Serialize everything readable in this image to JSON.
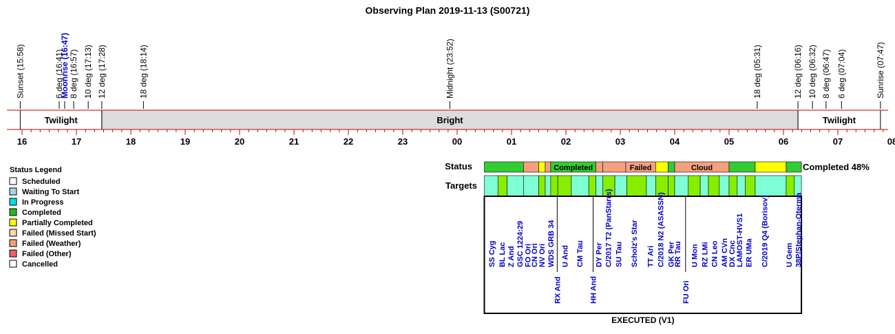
{
  "chart_data": {
    "type": "timeline",
    "title": "Observing Plan 2019-11-13 (S00721)",
    "time_axis": {
      "start_hour": 15.83,
      "end_hour": 32.0,
      "tick_labels": [
        "16",
        "17",
        "18",
        "19",
        "20",
        "21",
        "22",
        "23",
        "00",
        "01",
        "02",
        "03",
        "04",
        "05",
        "06",
        "07",
        "08"
      ]
    },
    "event_markers": [
      {
        "label": "Sunset (15:58)",
        "hour": 15.967,
        "color": "#000000"
      },
      {
        "label": "6 deg (16:41)",
        "hour": 16.683,
        "color": "#000000"
      },
      {
        "label": "Moonrise (16:47)",
        "hour": 16.783,
        "color": "#0000cc"
      },
      {
        "label": "8 deg (16:57)",
        "hour": 16.95,
        "color": "#000000"
      },
      {
        "label": "10 deg (17:13)",
        "hour": 17.217,
        "color": "#000000"
      },
      {
        "label": "12 deg (17:28)",
        "hour": 17.467,
        "color": "#000000"
      },
      {
        "label": "18 deg (18:14)",
        "hour": 18.233,
        "color": "#000000"
      },
      {
        "label": "Midnight (23:52)",
        "hour": 23.867,
        "color": "#000000"
      },
      {
        "label": "18 deg (05:31)",
        "hour": 29.517,
        "color": "#000000"
      },
      {
        "label": "12 deg (06:16)",
        "hour": 30.267,
        "color": "#000000"
      },
      {
        "label": "10 deg (06:32)",
        "hour": 30.533,
        "color": "#000000"
      },
      {
        "label": "8 deg (06:47)",
        "hour": 30.783,
        "color": "#000000"
      },
      {
        "label": "6 deg (07:04)",
        "hour": 31.067,
        "color": "#000000"
      },
      {
        "label": "Sunrise (07:47)",
        "hour": 31.783,
        "color": "#000000"
      }
    ],
    "sky_bands": [
      {
        "label": "Twilight",
        "start": 15.967,
        "end": 17.467,
        "fill": "#ffffff"
      },
      {
        "label": "Bright",
        "start": 17.467,
        "end": 30.267,
        "fill": "#dcdcdc"
      },
      {
        "label": "Twilight",
        "start": 30.267,
        "end": 31.783,
        "fill": "#ffffff"
      }
    ],
    "status_row": {
      "label": "Status",
      "summary": "Completed 48%",
      "segments": [
        {
          "start": 0.5,
          "end": 1.22,
          "status": "Completed",
          "label": ""
        },
        {
          "start": 1.22,
          "end": 1.5,
          "status": "Failed (Weather)",
          "label": ""
        },
        {
          "start": 1.5,
          "end": 1.62,
          "status": "Partially Completed",
          "label": ""
        },
        {
          "start": 1.62,
          "end": 1.72,
          "status": "Failed (Weather)",
          "label": ""
        },
        {
          "start": 1.72,
          "end": 2.55,
          "status": "Completed",
          "label": "Completed"
        },
        {
          "start": 2.55,
          "end": 2.68,
          "status": "Failed (Weather)",
          "label": ""
        },
        {
          "start": 2.68,
          "end": 3.1,
          "status": "Failed (Weather)",
          "label": ""
        },
        {
          "start": 3.1,
          "end": 3.65,
          "status": "Failed (Weather)",
          "label": "Failed"
        },
        {
          "start": 3.65,
          "end": 3.88,
          "status": "Partially Completed",
          "label": ""
        },
        {
          "start": 3.88,
          "end": 4.0,
          "status": "Completed",
          "label": ""
        },
        {
          "start": 4.0,
          "end": 5.0,
          "status": "Failed (Weather)",
          "label": "Cloud"
        },
        {
          "start": 5.0,
          "end": 5.48,
          "status": "Completed",
          "label": ""
        },
        {
          "start": 5.48,
          "end": 6.05,
          "status": "Partially Completed",
          "label": ""
        },
        {
          "start": 6.05,
          "end": 6.33,
          "status": "Completed",
          "label": ""
        }
      ]
    },
    "targets_row": {
      "label": "Targets",
      "footer": "EXECUTED (V1)",
      "blocks": [
        {
          "start": 0.5,
          "end": 0.75,
          "status": "Waiting To Start"
        },
        {
          "start": 0.75,
          "end": 0.92,
          "status": "Completed"
        },
        {
          "start": 0.92,
          "end": 1.22,
          "status": "Waiting To Start"
        },
        {
          "start": 1.22,
          "end": 1.5,
          "status": "Waiting To Start"
        },
        {
          "start": 1.5,
          "end": 1.62,
          "status": "Completed"
        },
        {
          "start": 1.62,
          "end": 1.72,
          "status": "Waiting To Start"
        },
        {
          "start": 1.72,
          "end": 1.85,
          "status": "Completed"
        },
        {
          "start": 1.85,
          "end": 2.1,
          "status": "Completed"
        },
        {
          "start": 2.1,
          "end": 2.42,
          "status": "Waiting To Start"
        },
        {
          "start": 2.42,
          "end": 2.55,
          "status": "Completed"
        },
        {
          "start": 2.55,
          "end": 2.68,
          "status": "Waiting To Start"
        },
        {
          "start": 2.68,
          "end": 2.9,
          "status": "Completed"
        },
        {
          "start": 2.9,
          "end": 3.12,
          "status": "Waiting To Start"
        },
        {
          "start": 3.12,
          "end": 3.48,
          "status": "Completed"
        },
        {
          "start": 3.48,
          "end": 3.65,
          "status": "Waiting To Start"
        },
        {
          "start": 3.65,
          "end": 3.88,
          "status": "Completed"
        },
        {
          "start": 3.88,
          "end": 4.0,
          "status": "Completed"
        },
        {
          "start": 4.0,
          "end": 4.25,
          "status": "Waiting To Start"
        },
        {
          "start": 4.25,
          "end": 4.47,
          "status": "Completed"
        },
        {
          "start": 4.47,
          "end": 4.62,
          "status": "Waiting To Start"
        },
        {
          "start": 4.62,
          "end": 4.82,
          "status": "Completed"
        },
        {
          "start": 4.82,
          "end": 5.0,
          "status": "Waiting To Start"
        },
        {
          "start": 5.0,
          "end": 5.15,
          "status": "Completed"
        },
        {
          "start": 5.15,
          "end": 5.3,
          "status": "Waiting To Start"
        },
        {
          "start": 5.3,
          "end": 5.48,
          "status": "Completed"
        },
        {
          "start": 5.48,
          "end": 6.05,
          "status": "Waiting To Start"
        },
        {
          "start": 6.05,
          "end": 6.2,
          "status": "Completed"
        },
        {
          "start": 6.2,
          "end": 6.33,
          "status": "Waiting To Start"
        }
      ],
      "names": [
        {
          "name": "SS Cyg",
          "hour": 0.63,
          "drop": false
        },
        {
          "name": "BL Lac",
          "hour": 0.82,
          "drop": false
        },
        {
          "name": "Z And",
          "hour": 0.99,
          "drop": false
        },
        {
          "name": "GSC 1224:29",
          "hour": 1.15,
          "drop": false
        },
        {
          "name": "FO Ori",
          "hour": 1.3,
          "drop": false
        },
        {
          "name": "CN Ori",
          "hour": 1.42,
          "drop": false
        },
        {
          "name": "NV Ori",
          "hour": 1.56,
          "drop": false
        },
        {
          "name": "WDS GRB 34",
          "hour": 1.72,
          "drop": false
        },
        {
          "name": "RX And",
          "hour": 1.84,
          "drop": true
        },
        {
          "name": "U And",
          "hour": 1.98,
          "drop": false
        },
        {
          "name": "CM Tau",
          "hour": 2.25,
          "drop": false
        },
        {
          "name": "HH And",
          "hour": 2.5,
          "drop": true
        },
        {
          "name": "DY Per",
          "hour": 2.6,
          "drop": false
        },
        {
          "name": "C/2017 T2 (PanStarrs)",
          "hour": 2.78,
          "drop": false
        },
        {
          "name": "SU Tau",
          "hour": 2.97,
          "drop": false
        },
        {
          "name": "Scholz's Star",
          "hour": 3.25,
          "drop": false
        },
        {
          "name": "TT Ari",
          "hour": 3.55,
          "drop": false
        },
        {
          "name": "C/2018 N2 (ASASSN)",
          "hour": 3.74,
          "drop": false
        },
        {
          "name": "GK Per",
          "hour": 3.93,
          "drop": false
        },
        {
          "name": "RR Tau",
          "hour": 4.05,
          "drop": false
        },
        {
          "name": "FU Ori",
          "hour": 4.2,
          "drop": true
        },
        {
          "name": "U Mon",
          "hour": 4.36,
          "drop": false
        },
        {
          "name": "RZ LMi",
          "hour": 4.55,
          "drop": false
        },
        {
          "name": "CN Leo",
          "hour": 4.73,
          "drop": false
        },
        {
          "name": "AM CVn",
          "hour": 4.91,
          "drop": false
        },
        {
          "name": "DX Cnc",
          "hour": 5.05,
          "drop": false
        },
        {
          "name": "LAMOST-HVS1",
          "hour": 5.19,
          "drop": false
        },
        {
          "name": "ER UMa",
          "hour": 5.36,
          "drop": false
        },
        {
          "name": "C/2019 Q4 (Borisov)",
          "hour": 5.65,
          "drop": false
        },
        {
          "name": "U Gem",
          "hour": 6.1,
          "drop": false
        },
        {
          "name": "38P/Stephan-Oterma",
          "hour": 6.27,
          "drop": false
        }
      ]
    },
    "legend": {
      "title": "Status Legend",
      "items": [
        {
          "label": "Scheduled",
          "color": "#ffffff"
        },
        {
          "label": "Waiting To Start",
          "color": "#a8d8e0"
        },
        {
          "label": "In Progress",
          "color": "#00e0e0"
        },
        {
          "label": "Completed",
          "color": "#22bb22"
        },
        {
          "label": "Partially Completed",
          "color": "#ffff00"
        },
        {
          "label": "Failed (Missed Start)",
          "color": "#ffd8a8"
        },
        {
          "label": "Failed (Weather)",
          "color": "#f4a080"
        },
        {
          "label": "Failed (Other)",
          "color": "#ee6060"
        },
        {
          "label": "Cancelled",
          "color": "#ffffff"
        }
      ]
    },
    "colors": {
      "status_completed": "#33cc33",
      "status_partial": "#ffff00",
      "status_weather": "#f4a080",
      "target_waiting": "#7fffd4",
      "target_completed": "#88ee00",
      "axis": "#cc0000",
      "target_name": "#0000cc"
    }
  }
}
